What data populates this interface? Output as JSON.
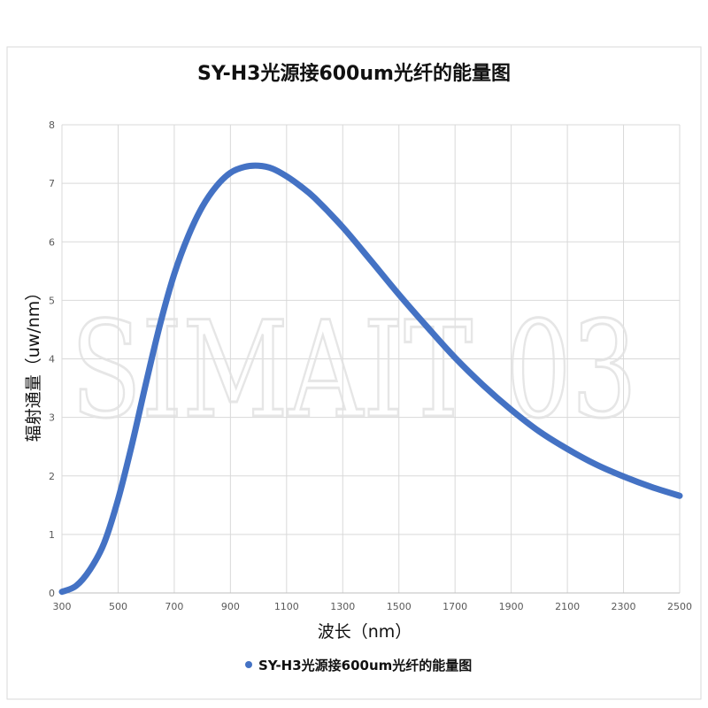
{
  "watermark_text": "SIMAIT 03",
  "chart_data": {
    "type": "line",
    "title": "SY-H3光源接600um光纤的能量图",
    "xlabel": "波长（nm）",
    "ylabel": "辐射通量（uw/nm）",
    "xlim": [
      300,
      2500
    ],
    "ylim": [
      0,
      8
    ],
    "x_ticks": [
      300,
      500,
      700,
      900,
      1100,
      1300,
      1500,
      1700,
      1900,
      2100,
      2300,
      2500
    ],
    "y_ticks": [
      0,
      1,
      2,
      3,
      4,
      5,
      6,
      7,
      8
    ],
    "grid": true,
    "legend_position": "bottom",
    "series_color": "#4472C4",
    "series": [
      {
        "name": "SY-H3光源接600um光纤的能量图",
        "x": [
          300,
          350,
          400,
          450,
          500,
          550,
          600,
          650,
          700,
          750,
          800,
          850,
          900,
          950,
          1000,
          1050,
          1100,
          1150,
          1200,
          1300,
          1400,
          1500,
          1600,
          1700,
          1800,
          1900,
          2000,
          2100,
          2200,
          2300,
          2400,
          2500
        ],
        "y": [
          0.02,
          0.12,
          0.4,
          0.85,
          1.6,
          2.55,
          3.6,
          4.6,
          5.45,
          6.1,
          6.6,
          6.95,
          7.18,
          7.28,
          7.3,
          7.25,
          7.12,
          6.95,
          6.75,
          6.25,
          5.68,
          5.1,
          4.55,
          4.02,
          3.55,
          3.13,
          2.76,
          2.46,
          2.2,
          1.99,
          1.81,
          1.66
        ]
      }
    ]
  }
}
